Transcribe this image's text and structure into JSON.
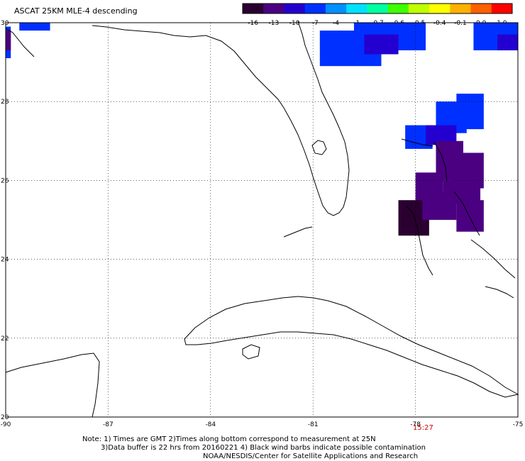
{
  "title": "ASCAT 25KM MLE-4 descending",
  "colorbar": {
    "labels": [
      "-16",
      "-13",
      "-10",
      "-7",
      "-4",
      "-1",
      "-0.7",
      "-0.6",
      "-0.5",
      "-0.4",
      "-0.1",
      "0.0",
      "1.0"
    ],
    "colors": [
      "#2a0030",
      "#4b0082",
      "#2400d0",
      "#0030ff",
      "#0090ff",
      "#00e0ff",
      "#00ffa0",
      "#40ff00",
      "#c0ff00",
      "#ffff00",
      "#ffb000",
      "#ff6000",
      "#ff0000"
    ]
  },
  "map": {
    "lon_ticks": [
      "-90",
      "-87",
      "-84",
      "-81",
      "-78",
      "-75"
    ],
    "lat_ticks": [
      "30",
      "28",
      "26",
      "24",
      "22",
      "20"
    ],
    "coastline_color": "#000000",
    "grid_style": "dotted"
  },
  "cells": [
    {
      "lon": -89.6,
      "lat": 30.0,
      "lon2": -88.7,
      "lat2": 29.8,
      "level": "-7"
    },
    {
      "lon": -90.0,
      "lat": 29.9,
      "lon2": -89.85,
      "lat2": 29.1,
      "level": "-7"
    },
    {
      "lon": -90.0,
      "lat": 29.8,
      "lon2": -89.85,
      "lat2": 29.3,
      "level": "-13"
    },
    {
      "lon": -80.8,
      "lat": 29.8,
      "lon2": -79.0,
      "lat2": 28.9,
      "level": "-7"
    },
    {
      "lon": -79.8,
      "lat": 30.0,
      "lon2": -77.7,
      "lat2": 29.3,
      "level": "-7"
    },
    {
      "lon": -79.5,
      "lat": 29.7,
      "lon2": -78.5,
      "lat2": 29.2,
      "level": "-10"
    },
    {
      "lon": -76.3,
      "lat": 30.0,
      "lon2": -75.0,
      "lat2": 29.3,
      "level": "-7"
    },
    {
      "lon": -75.6,
      "lat": 29.7,
      "lon2": -75.0,
      "lat2": 29.3,
      "level": "-10"
    },
    {
      "lon": -77.4,
      "lat": 28.0,
      "lon2": -76.5,
      "lat2": 27.2,
      "level": "-7"
    },
    {
      "lon": -76.8,
      "lat": 28.2,
      "lon2": -76.0,
      "lat2": 27.3,
      "level": "-7"
    },
    {
      "lon": -78.3,
      "lat": 27.4,
      "lon2": -77.5,
      "lat2": 26.8,
      "level": "-7"
    },
    {
      "lon": -77.7,
      "lat": 27.4,
      "lon2": -76.8,
      "lat2": 26.9,
      "level": "-10"
    },
    {
      "lon": -77.4,
      "lat": 27.0,
      "lon2": -76.6,
      "lat2": 26.0,
      "level": "-13"
    },
    {
      "lon": -76.9,
      "lat": 26.7,
      "lon2": -76.0,
      "lat2": 25.8,
      "level": "-13"
    },
    {
      "lon": -78.0,
      "lat": 26.2,
      "lon2": -77.2,
      "lat2": 25.3,
      "level": "-13"
    },
    {
      "lon": -77.2,
      "lat": 26.0,
      "lon2": -76.1,
      "lat2": 25.4,
      "level": "-13"
    },
    {
      "lon": -78.5,
      "lat": 25.5,
      "lon2": -77.6,
      "lat2": 24.6,
      "level": "-16"
    },
    {
      "lon": -77.8,
      "lat": 25.7,
      "lon2": -76.8,
      "lat2": 25.0,
      "level": "-13"
    },
    {
      "lon": -76.8,
      "lat": 25.5,
      "lon2": -76.0,
      "lat2": 24.7,
      "level": "-13"
    }
  ],
  "time_label": "15:27",
  "notes": [
    "Note: 1) Times are GMT 2)Times along bottom correspond to measurement at 25N",
    "3)Data buffer is 22 hrs from 20160221 4) Black wind barbs indicate possible contamination",
    "NOAA/NESDIS/Center for Satellite Applications and Research"
  ]
}
